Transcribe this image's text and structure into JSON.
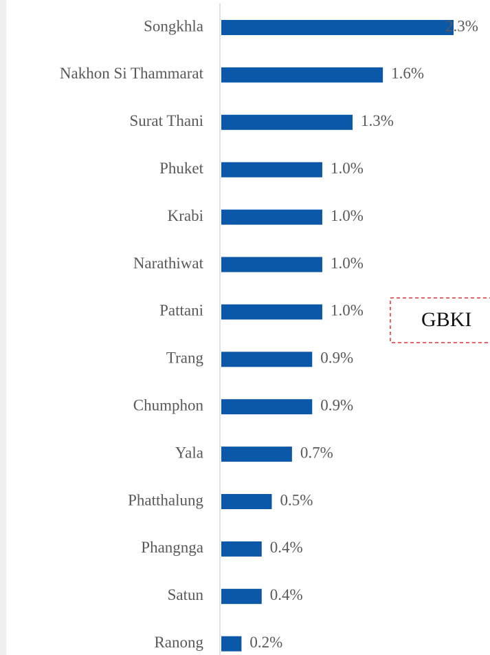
{
  "chart_data": {
    "type": "bar",
    "orientation": "horizontal",
    "categories": [
      "Songkhla",
      "Nakhon Si Thammarat",
      "Surat Thani",
      "Phuket",
      "Krabi",
      "Narathiwat",
      "Pattani",
      "Trang",
      "Chumphon",
      "Yala",
      "Phatthalung",
      "Phangnga",
      "Satun",
      "Ranong"
    ],
    "values": [
      2.3,
      1.6,
      1.3,
      1.0,
      1.0,
      1.0,
      1.0,
      0.9,
      0.9,
      0.7,
      0.5,
      0.4,
      0.4,
      0.2
    ],
    "value_labels": [
      "2.3%",
      "1.6%",
      "1.3%",
      "1.0%",
      "1.0%",
      "1.0%",
      "1.0%",
      "0.9%",
      "0.9%",
      "0.7%",
      "0.5%",
      "0.4%",
      "0.4%",
      "0.2%"
    ],
    "color": "#0b57a8",
    "annotation": "GBKI"
  }
}
